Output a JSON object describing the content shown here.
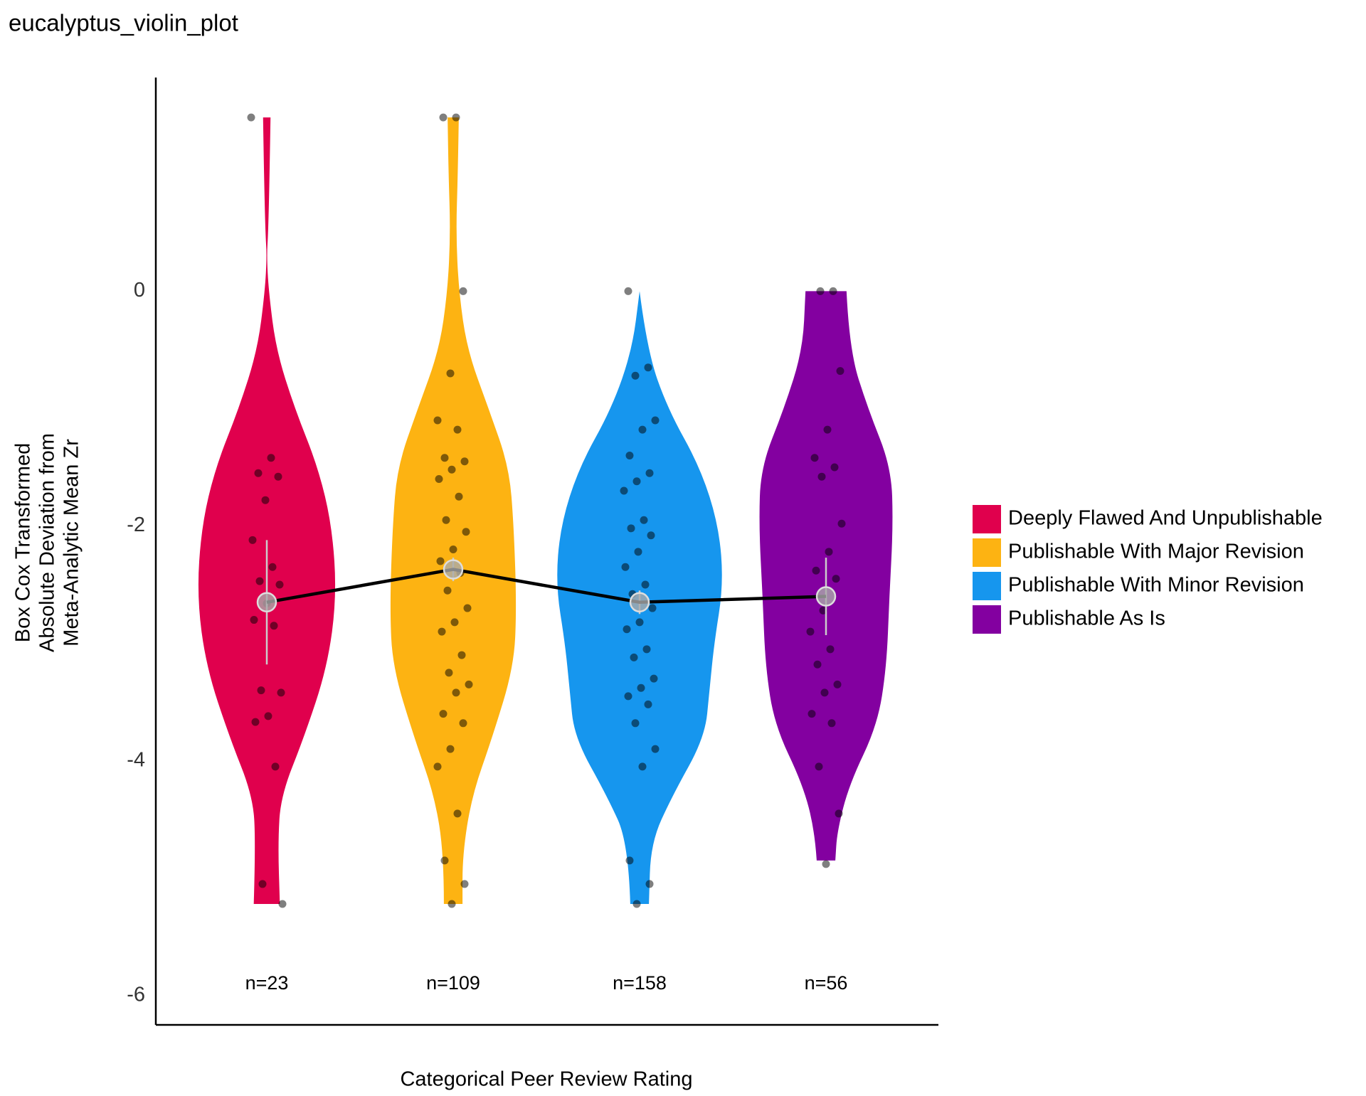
{
  "chart_data": {
    "type": "violin",
    "title": "eucalyptus_violin_plot",
    "x_label": "Categorical Peer Review Rating",
    "y_label": [
      "Box Cox Transformed",
      "Absolute Deviation from",
      "Meta-Analytic Mean Zr"
    ],
    "ylim": [
      -6.25,
      1.82
    ],
    "yticks": [
      0,
      -2,
      -4,
      -6
    ],
    "grid": false,
    "legend_position": "right",
    "mean_line_color": "#000000",
    "series": [
      {
        "name": "Deeply Flawed And Unpublishable",
        "color": "#e0004d",
        "n_label": "n=23",
        "mean": -2.65,
        "error": 0.53,
        "violin_y": [
          1.48,
          1.0,
          0.5,
          0.3,
          0.0,
          -0.5,
          -1.0,
          -1.5,
          -2.0,
          -2.6,
          -3.2,
          -3.8,
          -4.3,
          -4.7,
          -5.22
        ],
        "violin_width": [
          0.04,
          0.03,
          0.015,
          0.0,
          0.02,
          0.1,
          0.3,
          0.55,
          0.7,
          0.75,
          0.65,
          0.4,
          0.15,
          0.12,
          0.14
        ],
        "points": [
          1.48,
          -1.42,
          -1.55,
          -1.58,
          -1.78,
          -2.12,
          -2.35,
          -2.47,
          -2.5,
          -2.66,
          -2.8,
          -2.85,
          -3.4,
          -3.42,
          -3.62,
          -3.67,
          -4.05,
          -5.05,
          -5.22
        ]
      },
      {
        "name": "Publishable With Major Revision",
        "color": "#fdb312",
        "n_label": "n=109",
        "mean": -2.37,
        "error": 0.1,
        "violin_y": [
          1.48,
          1.0,
          0.5,
          0.0,
          -0.5,
          -1.0,
          -1.5,
          -2.0,
          -2.7,
          -3.2,
          -3.8,
          -4.3,
          -4.8,
          -5.22
        ],
        "violin_width": [
          0.06,
          0.05,
          0.03,
          0.06,
          0.15,
          0.38,
          0.6,
          0.65,
          0.68,
          0.65,
          0.42,
          0.2,
          0.1,
          0.1
        ],
        "points": [
          1.48,
          1.48,
          0.0,
          -0.7,
          -1.1,
          -1.18,
          -1.42,
          -1.45,
          -1.52,
          -1.6,
          -1.75,
          -1.95,
          -2.05,
          -2.2,
          -2.3,
          -2.4,
          -2.55,
          -2.7,
          -2.82,
          -2.9,
          -3.1,
          -3.25,
          -3.35,
          -3.42,
          -3.6,
          -3.68,
          -3.9,
          -4.05,
          -4.45,
          -4.85,
          -5.05,
          -5.22
        ]
      },
      {
        "name": "Publishable With Minor Revision",
        "color": "#1696ee",
        "n_label": "n=158",
        "mean": -2.65,
        "error": 0.1,
        "violin_y": [
          0.0,
          -0.5,
          -1.0,
          -1.5,
          -2.0,
          -2.5,
          -3.0,
          -3.4,
          -3.8,
          -4.3,
          -4.7,
          -5.22
        ],
        "violin_width": [
          0.0,
          0.08,
          0.3,
          0.65,
          0.85,
          0.9,
          0.8,
          0.75,
          0.7,
          0.35,
          0.12,
          0.1
        ],
        "points": [
          0.0,
          -0.65,
          -0.72,
          -1.1,
          -1.18,
          -1.4,
          -1.55,
          -1.62,
          -1.7,
          -1.95,
          -2.02,
          -2.08,
          -2.22,
          -2.35,
          -2.5,
          -2.58,
          -2.7,
          -2.82,
          -2.88,
          -3.05,
          -3.12,
          -3.3,
          -3.38,
          -3.45,
          -3.52,
          -3.68,
          -3.9,
          -4.05,
          -4.85,
          -5.05,
          -5.22
        ]
      },
      {
        "name": "Publishable As Is",
        "color": "#8300a0",
        "n_label": "n=56",
        "mean": -2.6,
        "error": 0.33,
        "violin_y": [
          0.0,
          -0.5,
          -1.0,
          -1.5,
          -2.0,
          -2.6,
          -3.2,
          -3.7,
          -4.2,
          -4.6,
          -4.85
        ],
        "violin_width": [
          0.22,
          0.25,
          0.45,
          0.7,
          0.72,
          0.68,
          0.65,
          0.55,
          0.25,
          0.12,
          0.1
        ],
        "points": [
          0.0,
          0.0,
          -0.68,
          -1.18,
          -1.42,
          -1.5,
          -1.58,
          -1.98,
          -2.22,
          -2.38,
          -2.45,
          -2.72,
          -2.9,
          -3.05,
          -3.18,
          -3.35,
          -3.42,
          -3.6,
          -3.68,
          -4.05,
          -4.45,
          -4.88
        ]
      }
    ]
  }
}
